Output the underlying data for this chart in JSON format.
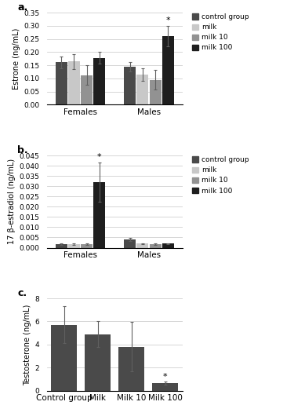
{
  "chart_a": {
    "title": "a.",
    "ylabel": "Estrone (ng/mL)",
    "ylim": [
      0,
      0.35
    ],
    "yticks": [
      0,
      0.05,
      0.1,
      0.15,
      0.2,
      0.25,
      0.3,
      0.35
    ],
    "groups": [
      "Females",
      "Males"
    ],
    "categories": [
      "control group",
      "milk",
      "milk 10",
      "milk 100"
    ],
    "colors": [
      "#4a4a4a",
      "#c8c8c8",
      "#929292",
      "#1e1e1e"
    ],
    "values": {
      "Females": [
        0.162,
        0.165,
        0.113,
        0.178
      ],
      "Males": [
        0.145,
        0.115,
        0.095,
        0.26
      ]
    },
    "errors": {
      "Females": [
        0.022,
        0.028,
        0.038,
        0.022
      ],
      "Males": [
        0.018,
        0.025,
        0.038,
        0.038
      ]
    },
    "significance": {
      "Males": [
        false,
        false,
        false,
        true
      ]
    }
  },
  "chart_b": {
    "title": "b.",
    "ylabel": "17 β-estradiol (ng/mL)",
    "ylim": [
      0,
      0.045
    ],
    "yticks": [
      0,
      0.005,
      0.01,
      0.015,
      0.02,
      0.025,
      0.03,
      0.035,
      0.04,
      0.045
    ],
    "groups": [
      "Females",
      "Males"
    ],
    "categories": [
      "control group",
      "milk",
      "milk 10",
      "milk 100"
    ],
    "colors": [
      "#4a4a4a",
      "#c8c8c8",
      "#929292",
      "#1e1e1e"
    ],
    "values": {
      "Females": [
        0.0018,
        0.0018,
        0.0018,
        0.032
      ],
      "Males": [
        0.004,
        0.002,
        0.0018,
        0.002
      ]
    },
    "errors": {
      "Females": [
        0.0003,
        0.0003,
        0.0003,
        0.0095
      ],
      "Males": [
        0.0007,
        0.0003,
        0.0003,
        0.0003
      ]
    },
    "significance": {
      "Females": [
        false,
        false,
        false,
        true
      ]
    }
  },
  "chart_c": {
    "title": "c.",
    "ylabel": "Testosterone (ng/mL)",
    "xlabel_categories": [
      "Control group",
      "Milk",
      "Milk 10",
      "Milk 100"
    ],
    "ylim": [
      0,
      8
    ],
    "yticks": [
      0,
      2,
      4,
      6,
      8
    ],
    "color": "#4a4a4a",
    "values": [
      5.7,
      4.9,
      3.8,
      0.65
    ],
    "errors": [
      1.6,
      1.1,
      2.15,
      0.12
    ],
    "significance": [
      false,
      false,
      false,
      true
    ]
  },
  "legend_labels": [
    "control group",
    "milk",
    "milk 10",
    "milk 100"
  ],
  "legend_colors": [
    "#4a4a4a",
    "#c8c8c8",
    "#929292",
    "#1e1e1e"
  ]
}
